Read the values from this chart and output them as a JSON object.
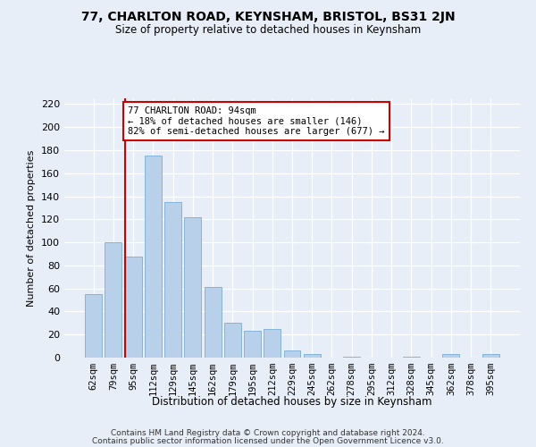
{
  "title": "77, CHARLTON ROAD, KEYNSHAM, BRISTOL, BS31 2JN",
  "subtitle": "Size of property relative to detached houses in Keynsham",
  "xlabel": "Distribution of detached houses by size in Keynsham",
  "ylabel": "Number of detached properties",
  "categories": [
    "62sqm",
    "79sqm",
    "95sqm",
    "112sqm",
    "129sqm",
    "145sqm",
    "162sqm",
    "179sqm",
    "195sqm",
    "212sqm",
    "229sqm",
    "245sqm",
    "262sqm",
    "278sqm",
    "295sqm",
    "312sqm",
    "328sqm",
    "345sqm",
    "362sqm",
    "378sqm",
    "395sqm"
  ],
  "values": [
    55,
    100,
    88,
    175,
    135,
    122,
    61,
    30,
    23,
    25,
    6,
    3,
    0,
    1,
    0,
    0,
    1,
    0,
    3,
    0,
    3
  ],
  "bar_color": "#b8d0ea",
  "bar_edge_color": "#7aadd4",
  "vline_color": "#cc0000",
  "annotation_box_color": "#ffffff",
  "annotation_box_edge": "#cc0000",
  "marker_label": "77 CHARLTON ROAD: 94sqm",
  "annotation_line1": "← 18% of detached houses are smaller (146)",
  "annotation_line2": "82% of semi-detached houses are larger (677) →",
  "ylim": [
    0,
    225
  ],
  "yticks": [
    0,
    20,
    40,
    60,
    80,
    100,
    120,
    140,
    160,
    180,
    200,
    220
  ],
  "background_color": "#e8eef8",
  "grid_color": "#ffffff",
  "footnote1": "Contains HM Land Registry data © Crown copyright and database right 2024.",
  "footnote2": "Contains public sector information licensed under the Open Government Licence v3.0."
}
